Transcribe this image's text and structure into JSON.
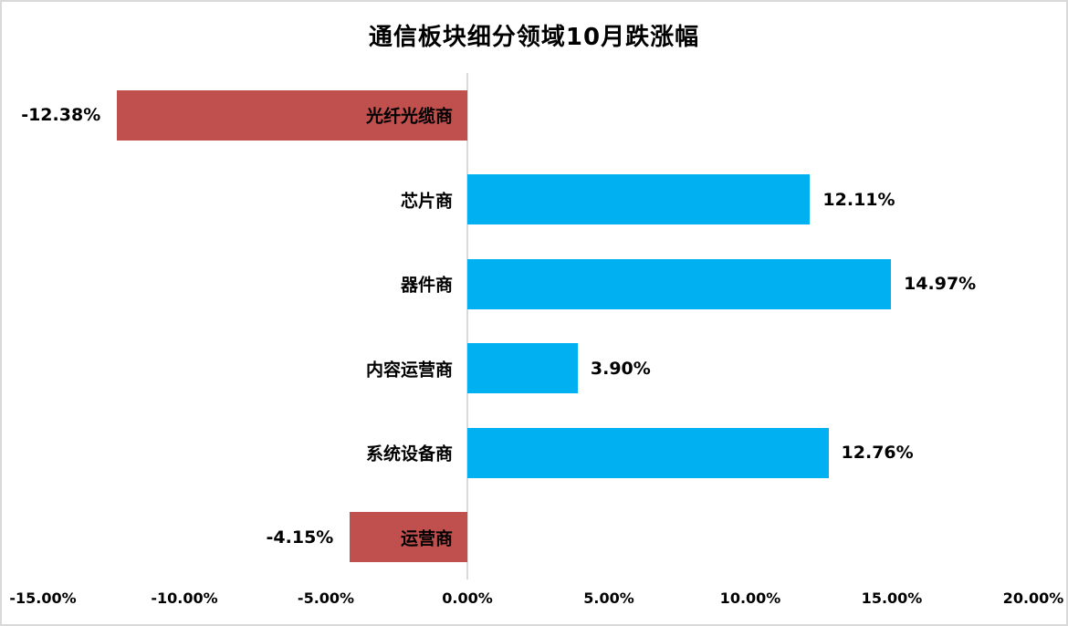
{
  "chart_data": {
    "type": "bar",
    "orientation": "horizontal",
    "title": "通信板块细分领域10月跌涨幅",
    "categories": [
      "光纤光缆商",
      "芯片商",
      "器件商",
      "内容运营商",
      "系统设备商",
      "运营商"
    ],
    "values": [
      -12.38,
      12.11,
      14.97,
      3.9,
      12.76,
      -4.15
    ],
    "value_labels": [
      "-12.38%",
      "12.11%",
      "14.97%",
      "3.90%",
      "12.76%",
      "-4.15%"
    ],
    "x_ticks": [
      {
        "value": -15,
        "label": "-15.00%"
      },
      {
        "value": -10,
        "label": "-10.00%"
      },
      {
        "value": -5,
        "label": "-5.00%"
      },
      {
        "value": 0,
        "label": "0.00%"
      },
      {
        "value": 5,
        "label": "5.00%"
      },
      {
        "value": 10,
        "label": "10.00%"
      },
      {
        "value": 15,
        "label": "15.00%"
      },
      {
        "value": 20,
        "label": "20.00%"
      }
    ],
    "xlim": [
      -15,
      20
    ],
    "xlabel": "",
    "ylabel": "",
    "grid": false,
    "legend": false,
    "colors": {
      "positive_bar": "#00B0F0",
      "negative_bar": "#C0504D",
      "axis_line": "#D9D9D9",
      "border": "#D9D9D9",
      "text": "#000000",
      "background": "#FFFFFF"
    }
  }
}
